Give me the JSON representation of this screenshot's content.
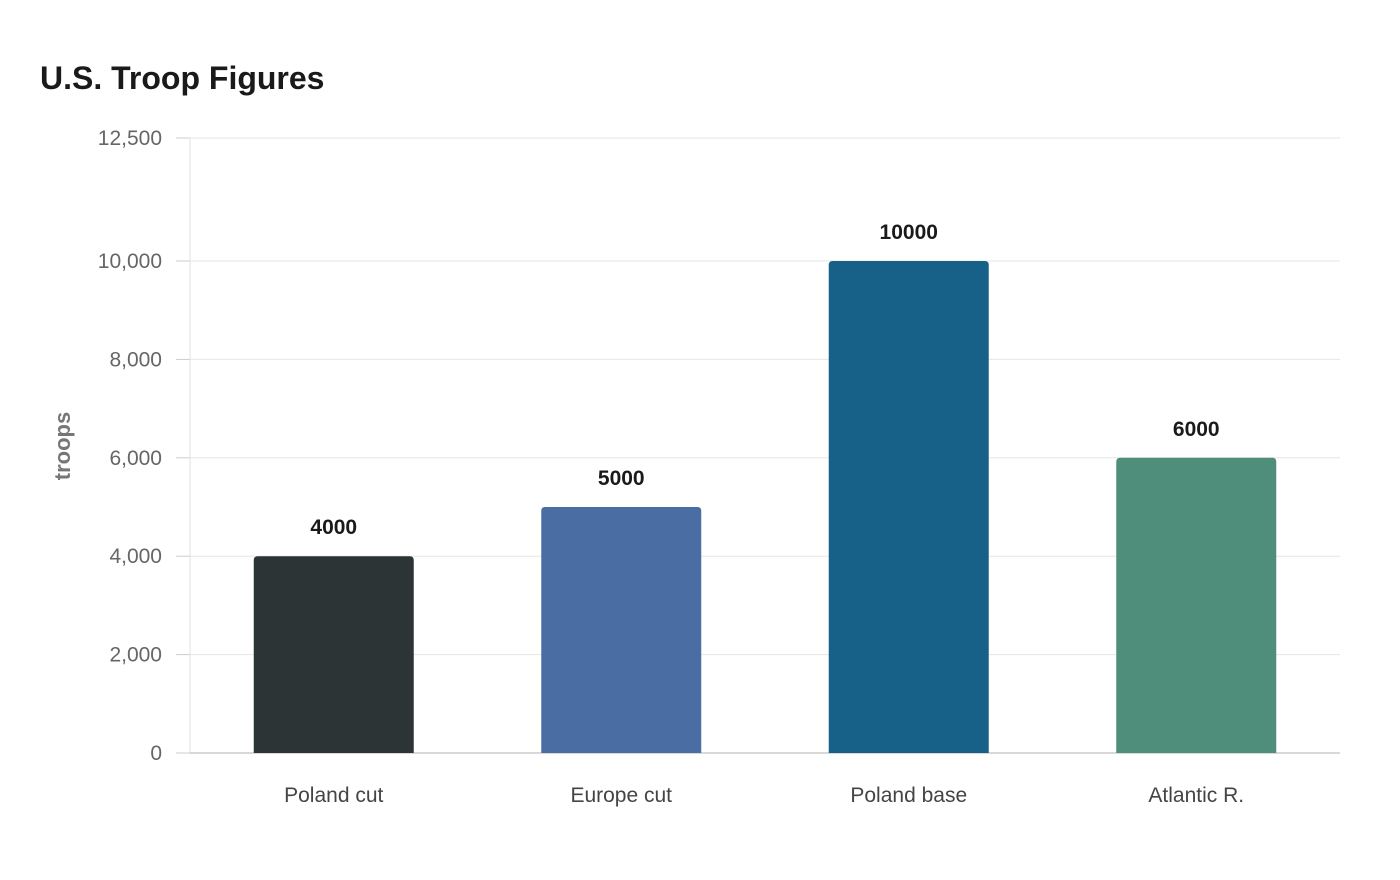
{
  "chart_data": {
    "type": "bar",
    "title": "U.S. Troop Figures",
    "xlabel": "",
    "ylabel": "troops",
    "categories": [
      "Poland cut",
      "Europe cut",
      "Poland base",
      "Atlantic R."
    ],
    "values": [
      4000,
      5000,
      10000,
      6000
    ],
    "value_labels": [
      "4000",
      "5000",
      "10000",
      "6000"
    ],
    "colors": [
      "#2d3436",
      "#4a6ea3",
      "#176087",
      "#4f8e7b"
    ],
    "ylim": [
      0,
      12500
    ],
    "yticks": [
      0,
      2000,
      4000,
      6000,
      8000,
      10000,
      12500
    ],
    "ytick_labels": [
      "0",
      "2,000",
      "4,000",
      "6,000",
      "8,000",
      "10,000",
      "12,500"
    ],
    "grid": true,
    "legend": "none"
  }
}
